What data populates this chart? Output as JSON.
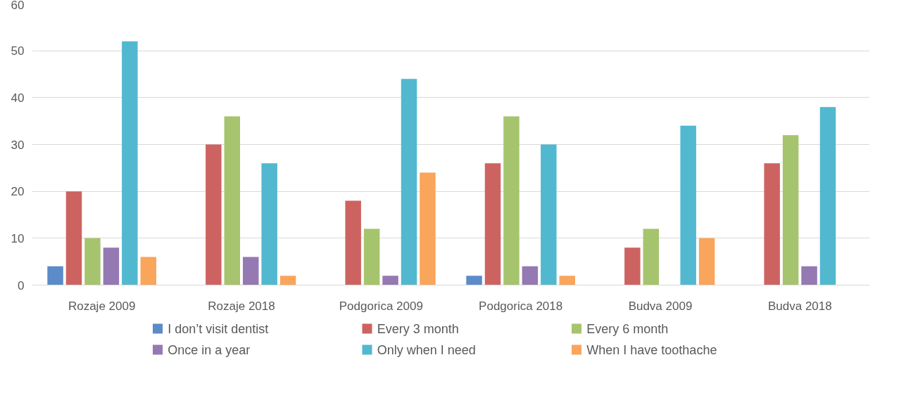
{
  "chart_data": {
    "type": "bar",
    "categories": [
      "Rozaje 2009",
      "Rozaje 2018",
      "Podgorica 2009",
      "Podgorica 2018",
      "Budva 2009",
      "Budva 2018"
    ],
    "series": [
      {
        "name": "I don’t visit dentist",
        "color": "#5b8bc9",
        "values": [
          4,
          0,
          0,
          2,
          0,
          0
        ]
      },
      {
        "name": "Every 3 month",
        "color": "#cd6360",
        "values": [
          20,
          30,
          18,
          26,
          8,
          26
        ]
      },
      {
        "name": "Every 6 month",
        "color": "#a6c46d",
        "values": [
          10,
          36,
          12,
          36,
          12,
          32
        ]
      },
      {
        "name": "Once in a year",
        "color": "#9479b2",
        "values": [
          8,
          6,
          2,
          4,
          0,
          4
        ]
      },
      {
        "name": "Only when I need",
        "color": "#52b8d0",
        "values": [
          52,
          26,
          44,
          30,
          34,
          38
        ]
      },
      {
        "name": "When I have toothache",
        "color": "#f9a55c",
        "values": [
          6,
          2,
          24,
          2,
          10,
          0
        ]
      }
    ],
    "ylim": [
      0,
      60
    ],
    "yticks": [
      0,
      10,
      20,
      30,
      40,
      50,
      60
    ],
    "grid": "y",
    "legend": "bottom"
  }
}
